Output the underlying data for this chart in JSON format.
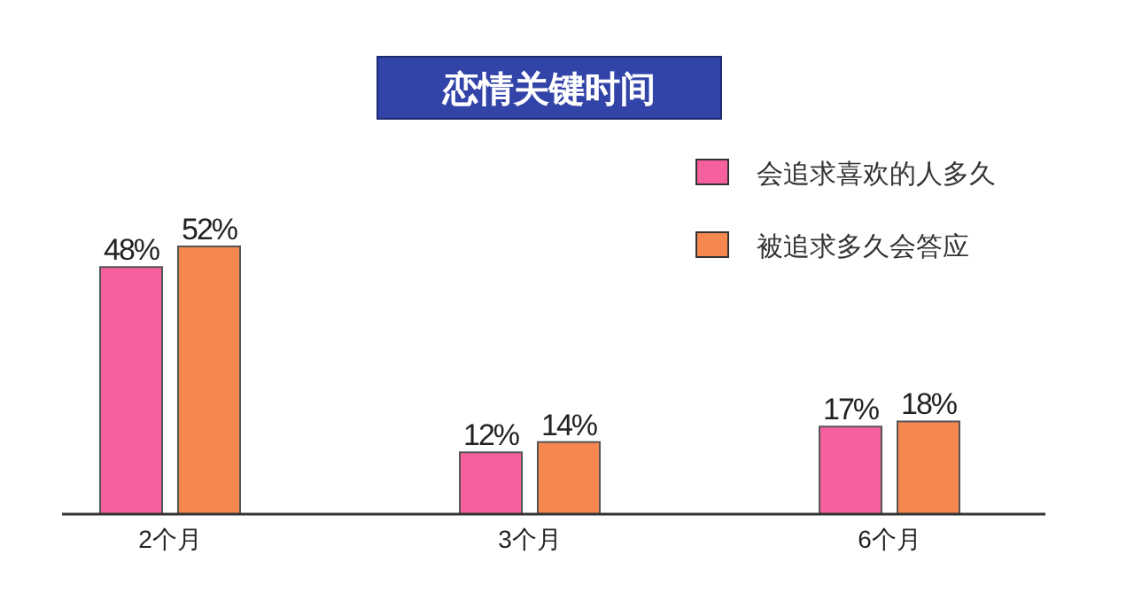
{
  "chart_data": {
    "type": "bar",
    "title": "恋情关键时间",
    "categories": [
      "2个月",
      "3个月",
      "6个月"
    ],
    "series": [
      {
        "name": "会追求喜欢的人多久",
        "color": "#f7609e",
        "values": [
          48,
          12,
          17
        ],
        "value_labels": [
          "48%",
          "12%",
          "17%"
        ]
      },
      {
        "name": "被追求多久会答应",
        "color": "#f6874f",
        "values": [
          52,
          14,
          18
        ],
        "value_labels": [
          "52%",
          "14%",
          "18%"
        ]
      }
    ],
    "legend": "top right"
  }
}
